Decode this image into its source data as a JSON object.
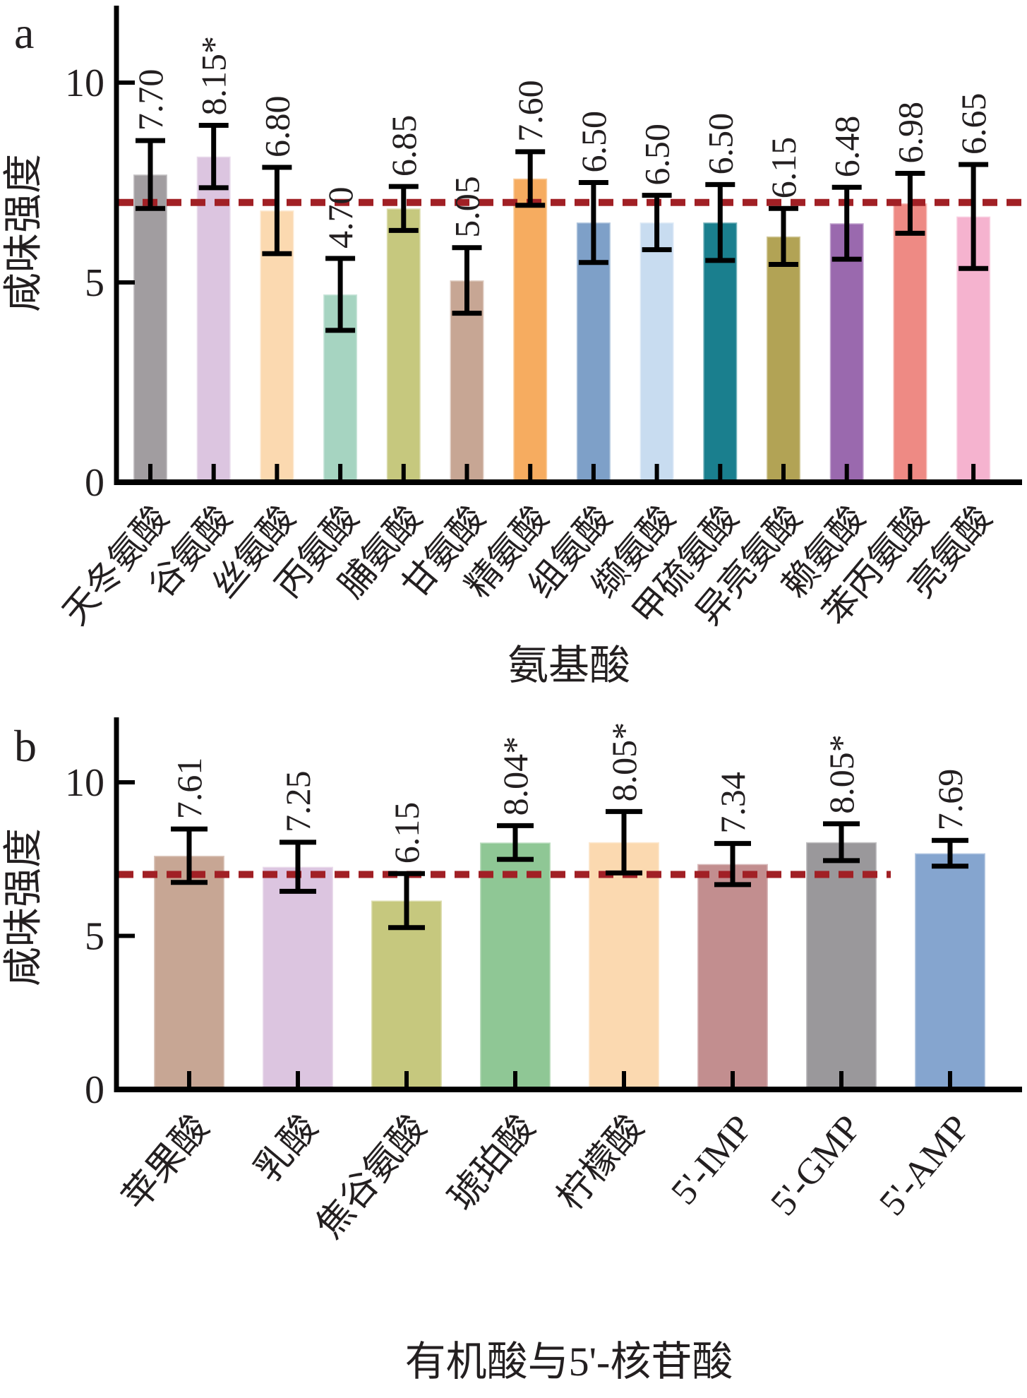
{
  "figure": {
    "reference_line_color": "#a12025",
    "error_bar_color": "#000000",
    "axis_color": "#000000",
    "background": "#ffffff"
  },
  "chart_data": [
    {
      "type": "bar",
      "panel_label": "a",
      "ylabel": "咸味强度",
      "xlabel": "氨基酸",
      "ylim": [
        0,
        11.9
      ],
      "yticks": [
        10,
        5,
        0
      ],
      "grid": false,
      "legend": "none",
      "reference_line": 7,
      "categories": [
        "天冬氨酸",
        "谷氨酸",
        "丝氨酸",
        "丙氨酸",
        "脯氨酸",
        "甘氨酸",
        "精氨酸",
        "组氨酸",
        "缬氨酸",
        "甲硫氨酸",
        "异亮氨酸",
        "赖氨酸",
        "苯丙氨酸",
        "亮氨酸"
      ],
      "values": [
        7.7,
        8.15,
        6.8,
        4.7,
        6.85,
        5.05,
        7.6,
        6.5,
        6.5,
        6.5,
        6.15,
        6.48,
        6.98,
        6.65
      ],
      "value_labels": [
        "7.70",
        "8.15*",
        "6.80",
        "4.70",
        "6.85",
        "5.05",
        "7.60",
        "6.50",
        "6.50",
        "6.50",
        "6.15",
        "6.48",
        "6.98",
        "6.65"
      ],
      "errors": [
        0.85,
        0.78,
        1.08,
        0.9,
        0.55,
        0.82,
        0.67,
        1.0,
        0.68,
        0.95,
        0.7,
        0.9,
        0.75,
        1.3
      ],
      "bar_colors": [
        "#a19da0",
        "#dcc5e0",
        "#fbd9b0",
        "#a6d4c1",
        "#c6c87e",
        "#c7a694",
        "#f6ac60",
        "#7ea0c8",
        "#c8dcf0",
        "#1a7f8e",
        "#b2a355",
        "#9a69ae",
        "#ee8a84",
        "#f5b3cf"
      ]
    },
    {
      "type": "bar",
      "panel_label": "b",
      "ylabel": "咸味强度",
      "xlabel": "有机酸与5'-核苷酸",
      "ylim": [
        0,
        12.1
      ],
      "yticks": [
        10,
        5,
        0
      ],
      "grid": false,
      "legend": "none",
      "reference_line": 7,
      "categories": [
        "苹果酸",
        "乳酸",
        "焦谷氨酸",
        "琥珀酸",
        "柠檬酸",
        "5'-IMP",
        "5'-GMP",
        "5'-AMP"
      ],
      "values": [
        7.61,
        7.25,
        6.15,
        8.04,
        8.05,
        7.34,
        8.05,
        7.69
      ],
      "value_labels": [
        "7.61",
        "7.25",
        "6.15",
        "8.04*",
        "8.05*",
        "7.34",
        "8.05*",
        "7.69"
      ],
      "errors": [
        0.87,
        0.8,
        0.88,
        0.55,
        1.0,
        0.67,
        0.6,
        0.42
      ],
      "bar_colors": [
        "#c7a694",
        "#dcc5e0",
        "#c6c87e",
        "#8fc795",
        "#fbd9b0",
        "#c28e8f",
        "#9a989b",
        "#85a5cf"
      ]
    }
  ]
}
